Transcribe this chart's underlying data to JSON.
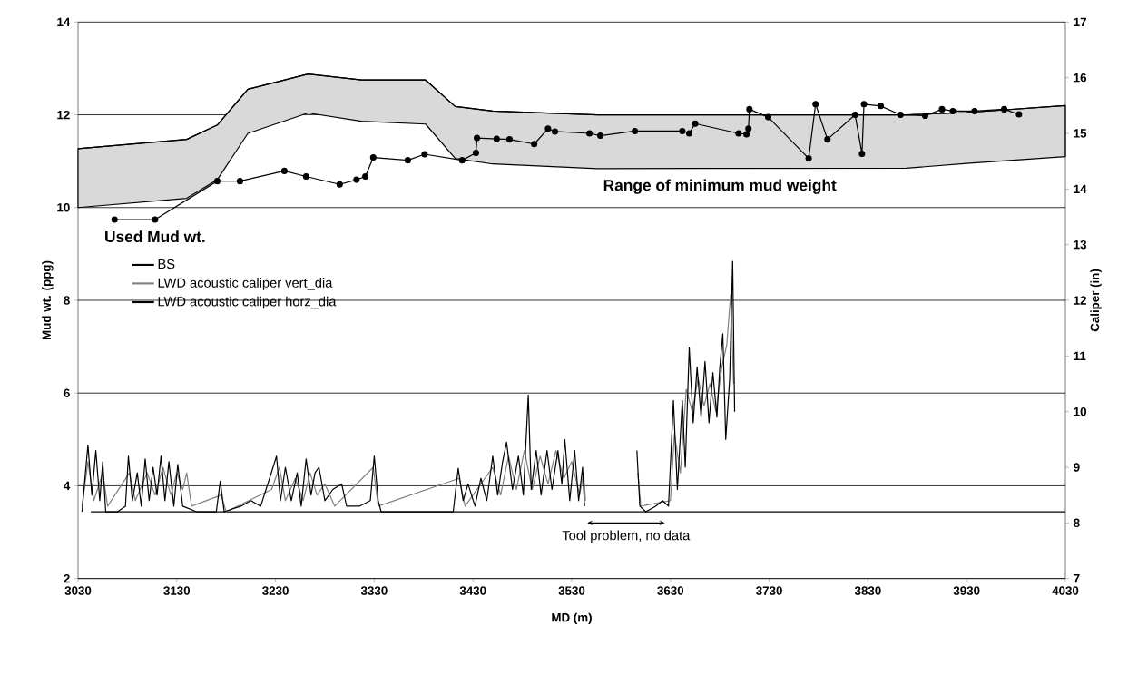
{
  "chart_data": {
    "type": "line",
    "xlabel": "MD (m)",
    "ylabel": "Mud wt. (ppg)",
    "y2label": "Caliper (in)",
    "xlim": [
      3030,
      4030
    ],
    "xticks": [
      3030,
      3130,
      3230,
      3330,
      3430,
      3530,
      3630,
      3730,
      3830,
      3930,
      4030
    ],
    "ylim": [
      2,
      14
    ],
    "yticks": [
      2,
      4,
      6,
      8,
      10,
      12,
      14
    ],
    "y2lim": [
      7,
      17
    ],
    "y2ticks": [
      7,
      8,
      9,
      10,
      11,
      12,
      13,
      14,
      15,
      16,
      17
    ],
    "grid": "y",
    "legend": "left",
    "annotations": [
      {
        "text": "Used Mud wt.",
        "x": 3108,
        "y": 9.74
      },
      {
        "text": "Range of minimum mud weight",
        "x": 3680,
        "y": 10.85
      },
      "Tool problem, no data"
    ],
    "series": [
      {
        "color": "#000000",
        "x": [
          3030,
          3140,
          3171,
          3202,
          3263,
          3317,
          3382,
          3412,
          3450,
          3556,
          3869,
          3930,
          4030
        ],
        "values": [
          11.27,
          11.47,
          11.78,
          12.55,
          12.88,
          12.75,
          12.75,
          12.18,
          12.08,
          12.0,
          12.0,
          12.05,
          12.2
        ],
        "upper": [
          11.27,
          11.47,
          11.78,
          12.55,
          12.88,
          12.75,
          12.75,
          12.18,
          12.08,
          12.0,
          12.0,
          12.05,
          12.2
        ],
        "lower": [
          10.0,
          10.2,
          10.6,
          11.6,
          12.04,
          11.86,
          11.8,
          11.06,
          10.94,
          10.84,
          10.85,
          10.95,
          11.1
        ]
      },
      {
        "color": "#000000",
        "marker": "circle",
        "x": [
          3067,
          3108,
          3171,
          3194,
          3239,
          3261,
          3295,
          3312,
          3321,
          3329,
          3364,
          3381,
          3419,
          3433,
          3434,
          3454,
          3467,
          3492,
          3506,
          3513,
          3548,
          3559,
          3594,
          3642,
          3649,
          3655,
          3699,
          3707,
          3709,
          3710,
          3729,
          3770,
          3777,
          3789,
          3817,
          3824,
          3826,
          3843,
          3863,
          3888,
          3905,
          3916,
          3938,
          3968,
          3983
        ],
        "values": [
          9.74,
          9.74,
          10.57,
          10.57,
          10.79,
          10.67,
          10.5,
          10.6,
          10.67,
          11.08,
          11.02,
          11.15,
          11.02,
          11.18,
          11.5,
          11.48,
          11.47,
          11.37,
          11.7,
          11.64,
          11.6,
          11.55,
          11.65,
          11.65,
          11.6,
          11.81,
          11.6,
          11.58,
          11.7,
          12.12,
          11.95,
          11.06,
          12.23,
          11.47,
          12.0,
          11.16,
          12.23,
          12.19,
          12.0,
          11.98,
          12.12,
          12.08,
          12.08,
          12.12,
          12.01
        ]
      },
      {
        "name": "BS",
        "axis": "y2",
        "color": "#000000",
        "x": [
          3043,
          4030
        ],
        "values": [
          8.2,
          8.2
        ]
      },
      {
        "name": "LWD acoustic caliper vert_dia",
        "axis": "y2",
        "color": "#808080",
        "x": [
          3034,
          3040,
          3046,
          3055,
          3060,
          3082,
          3088,
          3100,
          3108,
          3116,
          3124,
          3130,
          3136,
          3140,
          3145,
          3175,
          3180,
          3226,
          3234,
          3240,
          3250,
          3258,
          3265,
          3272,
          3280,
          3290,
          3329,
          3334,
          3416,
          3422,
          3450,
          3458,
          3466,
          3474,
          3482,
          3490,
          3498,
          3506,
          3514,
          3522,
          3530,
          3538,
          3542,
          3544,
          3570,
          3597,
          3600,
          3630,
          3634,
          3640,
          3646,
          3652,
          3658,
          3664,
          3670,
          3676,
          3682,
          3687,
          3691,
          3694
        ],
        "values": [
          8.3,
          9.1,
          8.4,
          8.9,
          8.3,
          8.9,
          8.4,
          8.9,
          8.5,
          9.0,
          8.5,
          8.9,
          8.6,
          8.9,
          8.3,
          8.5,
          8.2,
          8.6,
          9.0,
          8.4,
          8.8,
          8.4,
          8.9,
          8.5,
          8.7,
          8.3,
          9.0,
          8.3,
          8.8,
          8.3,
          9.0,
          8.5,
          9.2,
          8.6,
          9.3,
          8.6,
          9.2,
          8.7,
          9.3,
          8.8,
          9.1,
          8.5,
          8.9,
          8.4,
          null,
          8.9,
          8.3,
          8.4,
          9.6,
          8.9,
          10.4,
          10.0,
          10.6,
          10.1,
          10.5,
          10.0,
          10.8,
          11.2,
          12.1,
          10.5
        ]
      },
      {
        "name": "LWD acoustic caliper horz_dia",
        "axis": "y2",
        "color": "#000000",
        "x": [
          3034,
          3040,
          3044,
          3048,
          3052,
          3055,
          3058,
          3070,
          3078,
          3081,
          3085,
          3090,
          3094,
          3098,
          3102,
          3106,
          3110,
          3114,
          3118,
          3122,
          3127,
          3131,
          3136,
          3150,
          3170,
          3174,
          3178,
          3195,
          3205,
          3215,
          3224,
          3231,
          3235,
          3240,
          3246,
          3252,
          3256,
          3261,
          3266,
          3270,
          3274,
          3280,
          3288,
          3297,
          3302,
          3315,
          3326,
          3330,
          3334,
          3337,
          3360,
          3390,
          3410,
          3415,
          3420,
          3425,
          3432,
          3438,
          3444,
          3450,
          3455,
          3460,
          3464,
          3470,
          3476,
          3481,
          3486,
          3489,
          3494,
          3499,
          3505,
          3510,
          3516,
          3520,
          3523,
          3528,
          3533,
          3537,
          3541,
          3543,
          3570,
          3596,
          3599,
          3605,
          3615,
          3622,
          3628,
          3633,
          3637,
          3642,
          3645,
          3649,
          3653,
          3657,
          3661,
          3665,
          3669,
          3673,
          3677,
          3680,
          3683,
          3686,
          3690,
          3693,
          3695
        ],
        "values": [
          8.2,
          9.4,
          8.5,
          9.3,
          8.4,
          9.1,
          8.2,
          8.2,
          8.3,
          9.2,
          8.4,
          8.9,
          8.3,
          9.15,
          8.4,
          9.0,
          8.5,
          9.2,
          8.4,
          9.1,
          8.3,
          9.05,
          8.3,
          8.2,
          8.2,
          8.75,
          8.2,
          8.3,
          8.4,
          8.3,
          8.8,
          9.2,
          8.4,
          9.0,
          8.4,
          8.9,
          8.3,
          9.15,
          8.5,
          8.9,
          9.0,
          8.4,
          8.6,
          8.7,
          8.3,
          8.3,
          8.4,
          9.2,
          8.4,
          8.2,
          8.2,
          8.2,
          8.2,
          8.98,
          8.4,
          8.7,
          8.3,
          8.8,
          8.4,
          9.2,
          8.5,
          9.1,
          9.45,
          8.6,
          9.2,
          8.5,
          10.3,
          8.6,
          9.3,
          8.5,
          9.3,
          8.6,
          9.3,
          8.7,
          9.5,
          8.4,
          9.3,
          8.4,
          9.0,
          8.3,
          null,
          9.3,
          8.3,
          8.2,
          8.3,
          8.4,
          8.3,
          10.2,
          8.6,
          10.2,
          9.0,
          11.15,
          9.8,
          10.8,
          9.9,
          10.9,
          9.8,
          10.7,
          9.9,
          10.8,
          11.4,
          9.5,
          10.6,
          12.7,
          10.0
        ]
      }
    ]
  }
}
